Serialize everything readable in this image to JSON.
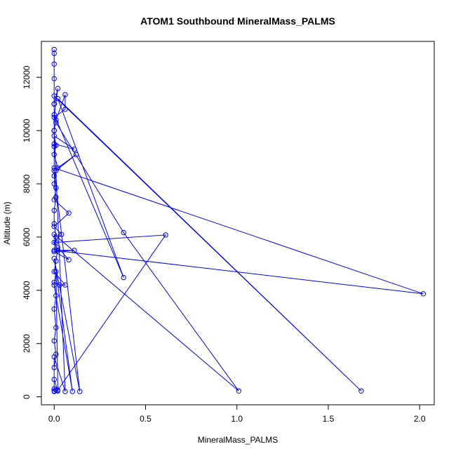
{
  "chart_data": {
    "type": "line",
    "title": "ATOM1 Southbound MineralMass_PALMS",
    "xlabel": "MineralMass_PALMS",
    "ylabel": "Altitude (m)",
    "xlim": [
      -0.07,
      2.08
    ],
    "ylim": [
      -300,
      13350
    ],
    "xticks": [
      0,
      0.5,
      1,
      1.5,
      2
    ],
    "xtick_labels": [
      "0.0",
      "0.5",
      "1.0",
      "1.5",
      "2.0"
    ],
    "yticks": [
      0,
      2000,
      4000,
      6000,
      8000,
      10000,
      12000
    ],
    "ytick_labels": [
      "0",
      "2000",
      "4000",
      "6000",
      "8000",
      "10000",
      "12000"
    ],
    "grid": false,
    "color": "#0000ff",
    "series": [
      {
        "points": [
          [
            0.0,
            200
          ],
          [
            0.01,
            250
          ],
          [
            0.0,
            300
          ],
          [
            0.02,
            220
          ],
          [
            0.0,
            650
          ],
          [
            0.0,
            1100
          ],
          [
            0.01,
            1600
          ],
          [
            0.0,
            2100
          ],
          [
            0.01,
            2600
          ],
          [
            0.0,
            3300
          ],
          [
            0.01,
            3800
          ],
          [
            0.0,
            4300
          ],
          [
            0.03,
            4200
          ],
          [
            0.06,
            4200
          ],
          [
            0.0,
            4700
          ],
          [
            0.01,
            5100
          ],
          [
            0.02,
            5600
          ],
          [
            0.08,
            5150
          ],
          [
            0.0,
            5450
          ],
          [
            0.11,
            5500
          ],
          [
            0.02,
            5500
          ],
          [
            0.0,
            5800
          ],
          [
            0.04,
            6100
          ],
          [
            0.0,
            6400
          ],
          [
            0.08,
            6900
          ],
          [
            0.0,
            7400
          ],
          [
            0.01,
            7850
          ],
          [
            0.0,
            8300
          ],
          [
            0.0,
            8600
          ],
          [
            2.02,
            3870
          ],
          [
            0.0,
            5500
          ],
          [
            0.01,
            6000
          ],
          [
            0.0,
            6500
          ],
          [
            0.0,
            7000
          ],
          [
            0.01,
            7500
          ],
          [
            0.0,
            8000
          ],
          [
            0.01,
            8500
          ],
          [
            0.12,
            9100
          ],
          [
            0.02,
            8600
          ],
          [
            0.0,
            9100
          ],
          [
            0.01,
            9450
          ],
          [
            0.0,
            9800
          ],
          [
            0.11,
            9300
          ],
          [
            0.0,
            9500
          ],
          [
            0.0,
            10000
          ],
          [
            0.01,
            10400
          ],
          [
            0.06,
            11350
          ],
          [
            0.06,
            10800
          ],
          [
            0.0,
            10500
          ],
          [
            0.02,
            11580
          ],
          [
            0.0,
            11000
          ],
          [
            0.0,
            11300
          ],
          [
            1.68,
            220
          ],
          [
            0.02,
            11200
          ],
          [
            0.38,
            4480
          ],
          [
            0.0,
            10600
          ],
          [
            0.01,
            10300
          ],
          [
            0.38,
            6170
          ],
          [
            1.01,
            220
          ],
          [
            0.0,
            6100
          ],
          [
            0.01,
            5800
          ],
          [
            0.61,
            6080
          ],
          [
            0.02,
            250
          ],
          [
            0.01,
            4700
          ],
          [
            0.0,
            4200
          ],
          [
            0.1,
            200
          ],
          [
            0.0,
            5200
          ],
          [
            0.14,
            200
          ],
          [
            0.0,
            8500
          ],
          [
            0.0,
            9400
          ],
          [
            0.0,
            10000
          ],
          [
            0.0,
            11000
          ],
          [
            0.0,
            11950
          ],
          [
            0.0,
            12900
          ],
          [
            0.0,
            13050
          ],
          [
            0.0,
            12500
          ],
          [
            0.0,
            11000
          ],
          [
            0.0,
            10000
          ],
          [
            0.06,
            200
          ],
          [
            0.0,
            1500
          ],
          [
            0.0,
            220
          ]
        ]
      }
    ]
  }
}
